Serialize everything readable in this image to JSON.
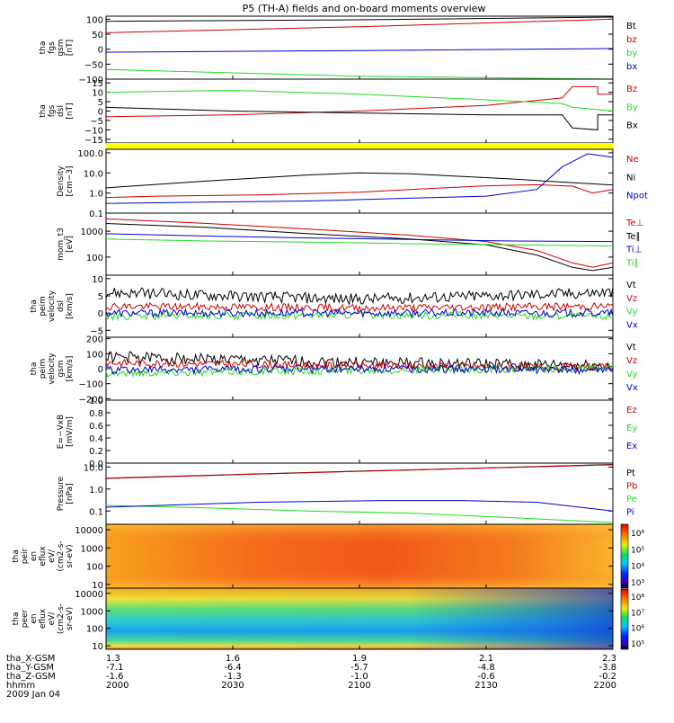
{
  "title": "P5 (TH-A) fields and on-board moments overview",
  "date_label": "2009 Jan 04",
  "colors": {
    "black": "#000000",
    "red": "#cc0000",
    "green": "#22dd22",
    "blue": "#0000cc",
    "yellow": "#ffff00"
  },
  "x_axis": {
    "rows": [
      {
        "label": "tha_X-GSM",
        "values": [
          "1.3",
          "1.6",
          "1.9",
          "2.1",
          "2.3"
        ]
      },
      {
        "label": "tha_Y-GSM",
        "values": [
          "-7.1",
          "-6.4",
          "-5.7",
          "-4.8",
          "-3.8"
        ]
      },
      {
        "label": "tha_Z-GSM",
        "values": [
          "-1.6",
          "-1.3",
          "-1.0",
          "-0.6",
          "-0.2"
        ]
      },
      {
        "label": "hhmm",
        "values": [
          "2000",
          "2030",
          "2100",
          "2130",
          "2200"
        ]
      }
    ]
  },
  "chart_data": [
    {
      "type": "line",
      "panel_id": "fgs-gsm",
      "ylabel_lines": [
        "tha",
        "fgs",
        "gsm",
        "[nT]"
      ],
      "ylim": [
        -100,
        110
      ],
      "yticks": [
        100,
        50,
        0,
        -50,
        -100
      ],
      "ytick_labels": [
        "100",
        "50",
        "0",
        "−50",
        "−100"
      ],
      "series": [
        {
          "name": "Bt",
          "color": "black",
          "values": [
            [
              0,
              93
            ],
            [
              0.5,
              98
            ],
            [
              1,
              107
            ]
          ]
        },
        {
          "name": "bz",
          "color": "red",
          "values": [
            [
              0,
              55
            ],
            [
              0.5,
              75
            ],
            [
              1,
              100
            ]
          ]
        },
        {
          "name": "by",
          "color": "green",
          "values": [
            [
              0,
              -68
            ],
            [
              0.5,
              -90
            ],
            [
              1,
              -120
            ]
          ]
        },
        {
          "name": "bx",
          "color": "blue",
          "values": [
            [
              0,
              -10
            ],
            [
              0.5,
              -5
            ],
            [
              1,
              2
            ]
          ]
        }
      ]
    },
    {
      "type": "line",
      "panel_id": "fgs-dsl",
      "ylabel_lines": [
        "tha",
        "fgs",
        "dsl",
        "[nT]"
      ],
      "ylim": [
        -17,
        17
      ],
      "yticks": [
        15,
        10,
        5,
        0,
        -5,
        -10,
        -15
      ],
      "ytick_labels": [
        "15",
        "10",
        "5",
        "0",
        "−5",
        "−10",
        "−15"
      ],
      "series": [
        {
          "name": "Bz",
          "color": "red",
          "values": [
            [
              0,
              -3
            ],
            [
              0.25,
              -2
            ],
            [
              0.5,
              0
            ],
            [
              0.75,
              3
            ],
            [
              0.9,
              7
            ],
            [
              0.92,
              13
            ],
            [
              0.97,
              13
            ],
            [
              0.97,
              9
            ],
            [
              1,
              9
            ]
          ]
        },
        {
          "name": "By",
          "color": "green",
          "values": [
            [
              0,
              10
            ],
            [
              0.25,
              11
            ],
            [
              0.5,
              9
            ],
            [
              0.75,
              6
            ],
            [
              0.9,
              4
            ],
            [
              0.92,
              2
            ],
            [
              1,
              0
            ]
          ]
        },
        {
          "name": "Bx",
          "color": "black",
          "values": [
            [
              0,
              2
            ],
            [
              0.25,
              0
            ],
            [
              0.5,
              -1
            ],
            [
              0.75,
              -2
            ],
            [
              0.9,
              -2
            ],
            [
              0.92,
              -9
            ],
            [
              0.97,
              -10
            ],
            [
              0.97,
              -2
            ],
            [
              1,
              -2
            ]
          ]
        }
      ]
    },
    {
      "type": "line",
      "panel_id": "density",
      "log": true,
      "ylabel_lines": [
        "Density",
        "[cm−3]"
      ],
      "ylim": [
        0.1,
        150
      ],
      "yticks": [
        100,
        10,
        1,
        0.1
      ],
      "ytick_labels": [
        "100.0",
        "10.0",
        "1.0",
        "0.1"
      ],
      "series": [
        {
          "name": "Ne",
          "color": "red",
          "values": [
            [
              0,
              0.6
            ],
            [
              0.1,
              0.7
            ],
            [
              0.3,
              0.8
            ],
            [
              0.5,
              1.1
            ],
            [
              0.6,
              1.5
            ],
            [
              0.75,
              2.3
            ],
            [
              0.85,
              2.6
            ],
            [
              0.92,
              2.2
            ],
            [
              0.96,
              1
            ],
            [
              1,
              1.5
            ]
          ]
        },
        {
          "name": "Ni",
          "color": "black",
          "values": [
            [
              0,
              1.8
            ],
            [
              0.2,
              4
            ],
            [
              0.4,
              8
            ],
            [
              0.5,
              10
            ],
            [
              0.6,
              9
            ],
            [
              0.8,
              5
            ],
            [
              0.9,
              3.5
            ],
            [
              1,
              2.5
            ]
          ]
        },
        {
          "name": "Npot",
          "color": "blue",
          "values": [
            [
              0,
              0.3
            ],
            [
              0.2,
              0.35
            ],
            [
              0.4,
              0.4
            ],
            [
              0.6,
              0.55
            ],
            [
              0.75,
              0.7
            ],
            [
              0.85,
              1.5
            ],
            [
              0.9,
              20
            ],
            [
              0.95,
              90
            ],
            [
              1,
              60
            ]
          ]
        }
      ]
    },
    {
      "type": "line",
      "panel_id": "temperature",
      "log": true,
      "ylabel_lines": [
        "mom_t3",
        "[eV]"
      ],
      "ylim": [
        20,
        5000
      ],
      "yticks": [
        1000,
        100
      ],
      "ytick_labels": [
        "1000",
        "100"
      ],
      "series": [
        {
          "name": "Te⊥",
          "color": "red",
          "values": [
            [
              0,
              3000
            ],
            [
              0.2,
              2000
            ],
            [
              0.4,
              1200
            ],
            [
              0.6,
              700
            ],
            [
              0.75,
              400
            ],
            [
              0.85,
              180
            ],
            [
              0.92,
              60
            ],
            [
              0.96,
              40
            ],
            [
              1,
              60
            ]
          ]
        },
        {
          "name": "Te∥",
          "color": "black",
          "values": [
            [
              0,
              2000
            ],
            [
              0.2,
              1400
            ],
            [
              0.4,
              800
            ],
            [
              0.6,
              500
            ],
            [
              0.75,
              300
            ],
            [
              0.85,
              120
            ],
            [
              0.92,
              40
            ],
            [
              0.96,
              30
            ],
            [
              1,
              40
            ]
          ]
        },
        {
          "name": "Ti⊥",
          "color": "blue",
          "values": [
            [
              0,
              800
            ],
            [
              0.2,
              650
            ],
            [
              0.4,
              550
            ],
            [
              0.6,
              480
            ],
            [
              0.8,
              420
            ],
            [
              1,
              400
            ]
          ]
        },
        {
          "name": "Ti∥",
          "color": "green",
          "values": [
            [
              0,
              500
            ],
            [
              0.2,
              420
            ],
            [
              0.4,
              380
            ],
            [
              0.6,
              330
            ],
            [
              0.8,
              300
            ],
            [
              1,
              270
            ]
          ]
        }
      ]
    },
    {
      "type": "line",
      "panel_id": "peim-dsl",
      "ylabel_lines": [
        "tha",
        "peim",
        "velocity",
        "dsl",
        "[km/s]"
      ],
      "ylim": [
        -7,
        11
      ],
      "yticks": [
        10,
        5,
        0,
        -5
      ],
      "ytick_labels": [
        "10",
        "5",
        "0",
        "−5"
      ],
      "series": [
        {
          "name": "Vt",
          "color": "black",
          "values": [
            [
              0,
              6
            ],
            [
              0.5,
              4
            ],
            [
              1,
              6
            ]
          ]
        },
        {
          "name": "Vz",
          "color": "red",
          "values": [
            [
              0,
              2
            ],
            [
              0.5,
              1.5
            ],
            [
              1,
              2
            ]
          ]
        },
        {
          "name": "Vy",
          "color": "green",
          "values": [
            [
              0,
              -1
            ],
            [
              0.5,
              -0.5
            ],
            [
              1,
              -1
            ]
          ]
        },
        {
          "name": "Vx",
          "color": "blue",
          "values": [
            [
              0,
              0
            ],
            [
              0.5,
              0
            ],
            [
              1,
              0
            ]
          ]
        }
      ]
    },
    {
      "type": "line",
      "panel_id": "peim-gsm",
      "ylabel_lines": [
        "tha",
        "peim",
        "velocity",
        "gsm",
        "[km/s]"
      ],
      "ylim": [
        -210,
        210
      ],
      "yticks": [
        200,
        100,
        0,
        -100,
        -200
      ],
      "ytick_labels": [
        "200",
        "100",
        "0",
        "−100",
        "−200"
      ],
      "series": [
        {
          "name": "Vt",
          "color": "black",
          "values": [
            [
              0,
              80
            ],
            [
              0.5,
              40
            ],
            [
              1,
              20
            ]
          ]
        },
        {
          "name": "Vz",
          "color": "red",
          "values": [
            [
              0,
              40
            ],
            [
              0.5,
              20
            ],
            [
              1,
              10
            ]
          ]
        },
        {
          "name": "Vy",
          "color": "green",
          "values": [
            [
              0,
              -30
            ],
            [
              0.5,
              -10
            ],
            [
              1,
              0
            ]
          ]
        },
        {
          "name": "Vx",
          "color": "blue",
          "values": [
            [
              0,
              -10
            ],
            [
              0.5,
              0
            ],
            [
              1,
              -10
            ]
          ]
        }
      ]
    },
    {
      "type": "line",
      "panel_id": "efield",
      "ylabel_lines": [
        "E=−VxB",
        "[mV/m]"
      ],
      "ylim": [
        0,
        1
      ],
      "yticks": [
        1,
        0.8,
        0.6,
        0.4,
        0.2,
        0
      ],
      "ytick_labels": [
        "1.0",
        "0.8",
        "0.6",
        "0.4",
        "0.2",
        "0.0"
      ],
      "series": [
        {
          "name": "Ez",
          "color": "red",
          "values": []
        },
        {
          "name": "Ey",
          "color": "green",
          "values": []
        },
        {
          "name": "Ex",
          "color": "blue",
          "values": []
        }
      ]
    },
    {
      "type": "line",
      "panel_id": "pressure",
      "log": true,
      "ylabel_lines": [
        "Pressure",
        "[nPa]"
      ],
      "ylim": [
        0.025,
        15
      ],
      "yticks": [
        10,
        1,
        0.1
      ],
      "ytick_labels": [
        "10.0",
        "1.0",
        "0.1"
      ],
      "series": [
        {
          "name": "Pt",
          "color": "black",
          "values": [
            [
              0,
              3.1
            ],
            [
              0.25,
              4.5
            ],
            [
              0.5,
              6.5
            ],
            [
              0.75,
              9
            ],
            [
              1,
              13
            ]
          ]
        },
        {
          "name": "Pb",
          "color": "red",
          "values": [
            [
              0,
              3
            ],
            [
              0.25,
              4.4
            ],
            [
              0.5,
              6.4
            ],
            [
              0.75,
              8.9
            ],
            [
              1,
              12.5
            ]
          ]
        },
        {
          "name": "Pe",
          "color": "green",
          "values": [
            [
              0,
              0.18
            ],
            [
              0.2,
              0.14
            ],
            [
              0.4,
              0.1
            ],
            [
              0.6,
              0.08
            ],
            [
              0.8,
              0.05
            ],
            [
              1,
              0.03
            ]
          ]
        },
        {
          "name": "Pi",
          "color": "blue",
          "values": [
            [
              0,
              0.15
            ],
            [
              0.3,
              0.25
            ],
            [
              0.55,
              0.3
            ],
            [
              0.7,
              0.3
            ],
            [
              0.85,
              0.25
            ],
            [
              1,
              0.1
            ]
          ]
        }
      ]
    },
    {
      "type": "heatmap",
      "panel_id": "peir",
      "ylabel_lines": [
        "tha",
        "peir",
        "en",
        "eflux",
        "eV/",
        "(cm2-s-",
        "sr-eV)"
      ],
      "yticks": [
        10000,
        1000,
        100,
        10
      ],
      "ytick_labels": [
        "10000",
        "1000",
        "100",
        "10"
      ],
      "colorbar_labels": [
        "10⁶",
        "10⁵",
        "10⁴",
        "10³"
      ]
    },
    {
      "type": "heatmap",
      "panel_id": "peer",
      "ylabel_lines": [
        "tha",
        "peer",
        "en",
        "eflux",
        "eV/",
        "(cm2-s-",
        "sr-eV)"
      ],
      "yticks": [
        10000,
        1000,
        100,
        10
      ],
      "ytick_labels": [
        "10000",
        "1000",
        "100",
        "10"
      ],
      "colorbar_labels": [
        "10⁸",
        "10⁷",
        "10⁶",
        "10⁵"
      ]
    }
  ]
}
